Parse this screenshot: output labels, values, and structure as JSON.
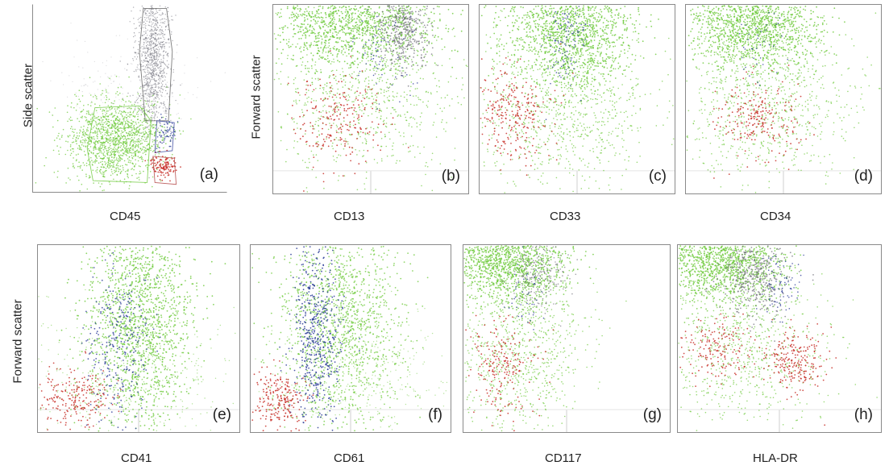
{
  "y_labels": {
    "side": "Side scatter",
    "forward_top": "Forward scatter",
    "forward_bottom": "Forward scatter"
  },
  "panels": [
    {
      "label": "(a)",
      "marker": "CD45"
    },
    {
      "label": "(b)",
      "marker": "CD13"
    },
    {
      "label": "(c)",
      "marker": "CD33"
    },
    {
      "label": "(d)",
      "marker": "CD34"
    },
    {
      "label": "(e)",
      "marker": "CD41"
    },
    {
      "label": "(f)",
      "marker": "CD61"
    },
    {
      "label": "(g)",
      "marker": "CD117"
    },
    {
      "label": "(h)",
      "marker": "HLA-DR"
    }
  ],
  "colors": {
    "green": "#6dc93a",
    "grey": "#6e6e78",
    "blue": "#2f3f9a",
    "red": "#c8312a"
  }
}
